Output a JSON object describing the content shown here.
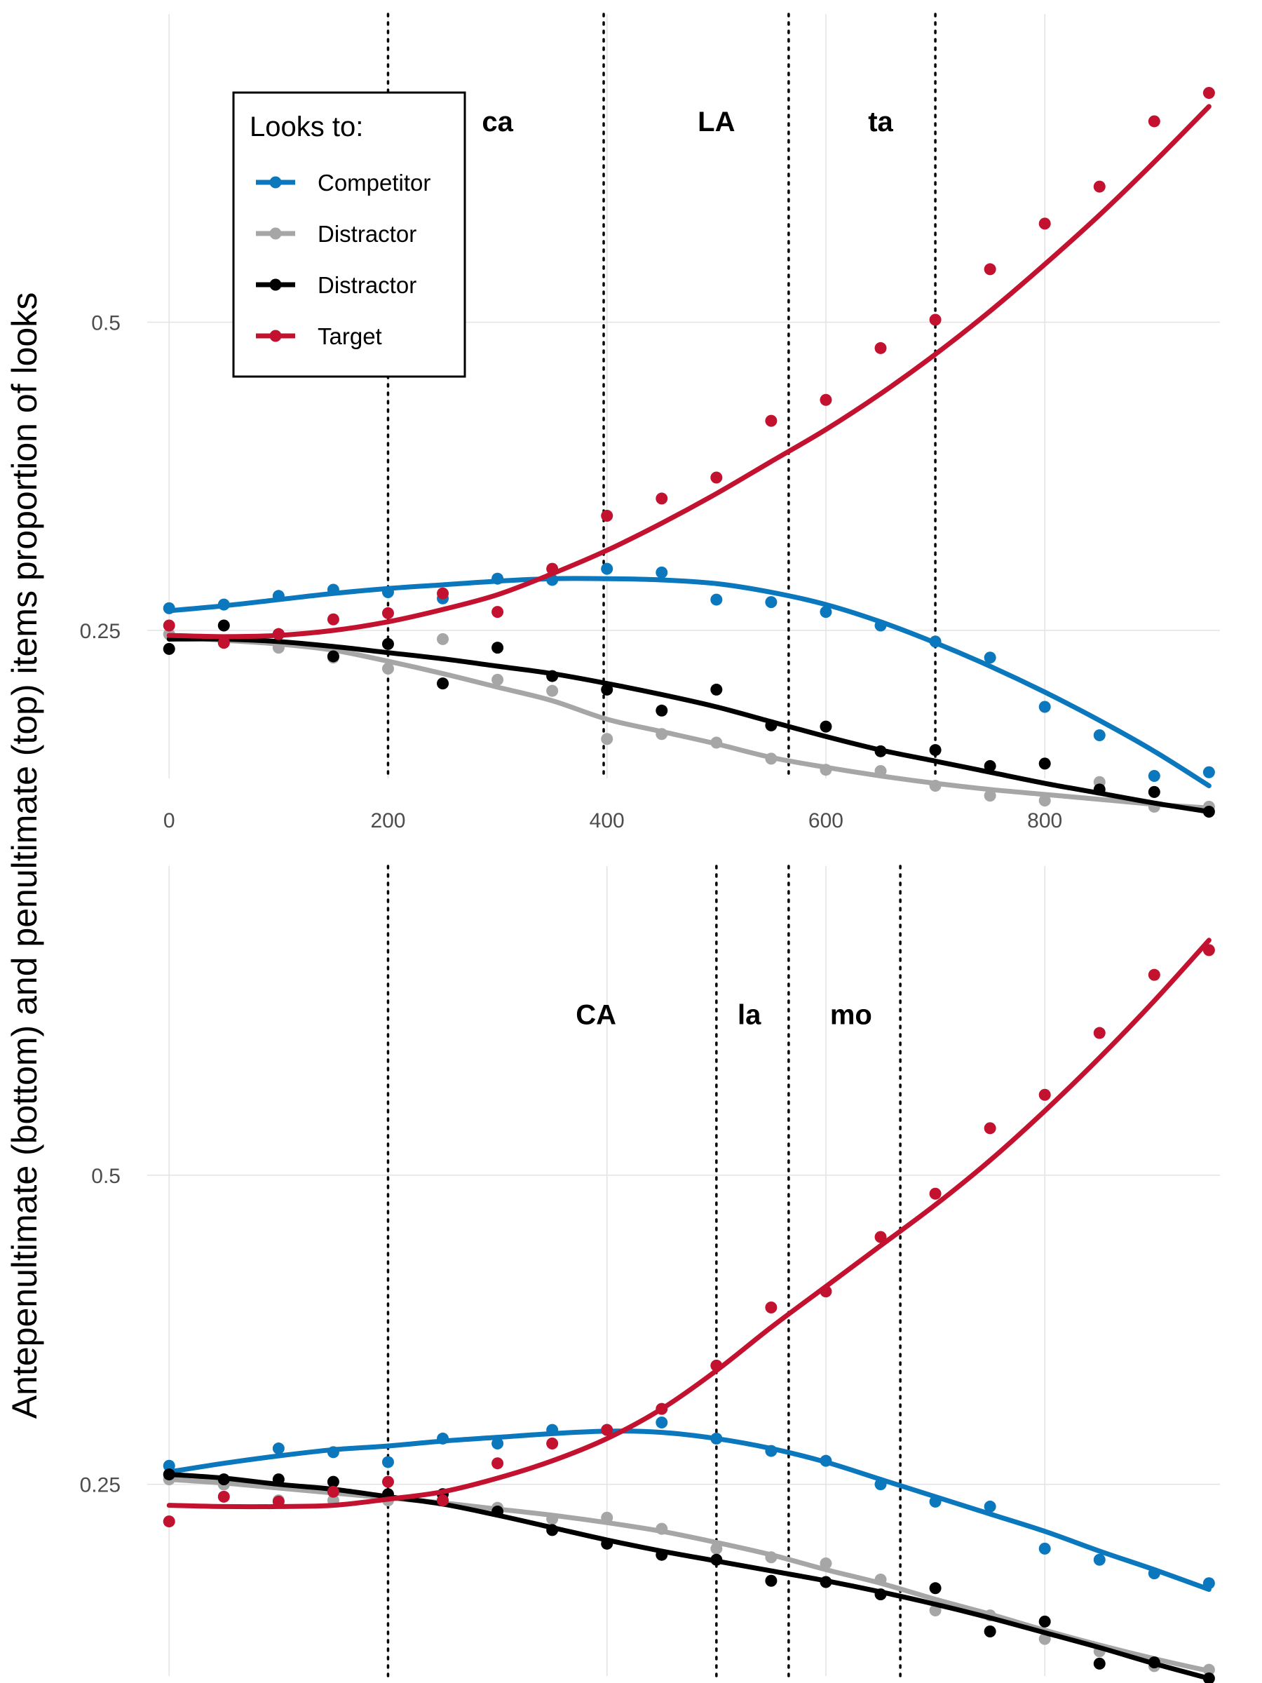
{
  "ylabel": "Antepenultimate (bottom) and penultimate (top) items proportion of looks",
  "colors": {
    "Competitor": "#0b77bd",
    "Distractor1": "#a6a6a6",
    "Distractor2": "#000000",
    "Target": "#c3122f"
  },
  "legend": {
    "title": "Looks to:",
    "items": [
      {
        "label": "Competitor",
        "color": "#0b77bd"
      },
      {
        "label": "Distractor",
        "color": "#a6a6a6"
      },
      {
        "label": "Distractor",
        "color": "#000000"
      },
      {
        "label": "Target",
        "color": "#c3122f"
      }
    ]
  },
  "chart_data": [
    {
      "type": "scatter",
      "panel": "top",
      "x": [
        0,
        50,
        100,
        150,
        200,
        250,
        300,
        350,
        400,
        450,
        500,
        550,
        600,
        650,
        700,
        750,
        800,
        850,
        900,
        950
      ],
      "xlim": [
        -20,
        960
      ],
      "ylim": [
        0.13,
        0.75
      ],
      "xticks": [
        "0",
        "200",
        "400",
        "600",
        "800"
      ],
      "xtick_values": [
        0,
        200,
        400,
        600,
        800
      ],
      "yticks": [
        "0.25",
        "0.5"
      ],
      "ytick_values": [
        0.25,
        0.5
      ],
      "vlines": [
        200,
        397,
        566,
        700
      ],
      "segments": [
        {
          "label": "ca",
          "x": 300,
          "y": 0.663
        },
        {
          "label": "LA",
          "x": 500,
          "y": 0.663
        },
        {
          "label": "ta",
          "x": 650,
          "y": 0.663
        }
      ],
      "series": [
        {
          "name": "Competitor",
          "color": "#0b77bd",
          "points": [
            0.268,
            0.271,
            0.278,
            0.283,
            0.281,
            0.276,
            0.292,
            0.291,
            0.3,
            0.297,
            0.275,
            0.273,
            0.265,
            0.254,
            0.241,
            0.228,
            0.188,
            0.165,
            0.132,
            0.135
          ],
          "fit": [
            0.266,
            0.27,
            0.275,
            0.28,
            0.284,
            0.287,
            0.29,
            0.292,
            0.292,
            0.291,
            0.288,
            0.281,
            0.271,
            0.257,
            0.24,
            0.221,
            0.2,
            0.177,
            0.152,
            0.124
          ]
        },
        {
          "name": "Distractor",
          "color": "#a6a6a6",
          "points": [
            0.247,
            0.24,
            0.236,
            0.228,
            0.219,
            0.243,
            0.21,
            0.201,
            0.162,
            0.166,
            0.159,
            0.146,
            0.137,
            0.136,
            0.124,
            0.116,
            0.112,
            0.127,
            0.107,
            0.107
          ],
          "fit": [
            0.245,
            0.242,
            0.239,
            0.234,
            0.225,
            0.215,
            0.204,
            0.193,
            0.178,
            0.168,
            0.158,
            0.147,
            0.139,
            0.132,
            0.126,
            0.121,
            0.117,
            0.113,
            0.109,
            0.106
          ]
        },
        {
          "name": "Distractor",
          "color": "#000000",
          "points": [
            0.235,
            0.254,
            0.247,
            0.229,
            0.239,
            0.207,
            0.236,
            0.213,
            0.202,
            0.185,
            0.202,
            0.173,
            0.172,
            0.152,
            0.153,
            0.14,
            0.142,
            0.121,
            0.119,
            0.103
          ],
          "fit": [
            0.243,
            0.243,
            0.241,
            0.237,
            0.232,
            0.227,
            0.221,
            0.215,
            0.207,
            0.198,
            0.188,
            0.176,
            0.164,
            0.153,
            0.144,
            0.135,
            0.126,
            0.118,
            0.11,
            0.103
          ]
        },
        {
          "name": "Target",
          "color": "#c3122f",
          "points": [
            0.254,
            0.24,
            0.247,
            0.259,
            0.264,
            0.28,
            0.265,
            0.3,
            0.343,
            0.357,
            0.374,
            0.42,
            0.437,
            0.479,
            0.502,
            0.543,
            0.58,
            0.61,
            0.663,
            0.686
          ],
          "fit": [
            0.246,
            0.245,
            0.246,
            0.25,
            0.257,
            0.267,
            0.279,
            0.296,
            0.315,
            0.337,
            0.361,
            0.387,
            0.413,
            0.442,
            0.474,
            0.509,
            0.547,
            0.587,
            0.63,
            0.675
          ]
        }
      ]
    },
    {
      "type": "scatter",
      "panel": "bottom",
      "x": [
        0,
        50,
        100,
        150,
        200,
        250,
        300,
        350,
        400,
        450,
        500,
        550,
        600,
        650,
        700,
        750,
        800,
        850,
        900,
        950
      ],
      "xlim": [
        -20,
        960
      ],
      "ylim": [
        0.095,
        0.75
      ],
      "xticks": [],
      "xtick_values": [
        0,
        200,
        400,
        600,
        800
      ],
      "yticks": [
        "0.25",
        "0.5"
      ],
      "ytick_values": [
        0.25,
        0.5
      ],
      "vlines": [
        200,
        500,
        566,
        668
      ],
      "segments": [
        {
          "label": "CA",
          "x": 390,
          "y": 0.63
        },
        {
          "label": "la",
          "x": 530,
          "y": 0.63
        },
        {
          "label": "mo",
          "x": 623,
          "y": 0.63
        }
      ],
      "series": [
        {
          "name": "Competitor",
          "color": "#0b77bd",
          "points": [
            0.265,
            0.25,
            0.279,
            0.276,
            0.268,
            0.287,
            0.283,
            0.294,
            0.294,
            0.3,
            0.287,
            0.277,
            0.269,
            0.25,
            0.236,
            0.232,
            0.198,
            0.189,
            0.178,
            0.17
          ],
          "fit": [
            0.26,
            0.267,
            0.273,
            0.278,
            0.281,
            0.285,
            0.288,
            0.291,
            0.293,
            0.292,
            0.287,
            0.279,
            0.268,
            0.254,
            0.24,
            0.226,
            0.212,
            0.196,
            0.181,
            0.165
          ]
        },
        {
          "name": "Distractor",
          "color": "#a6a6a6",
          "points": [
            0.254,
            0.25,
            0.237,
            0.237,
            0.237,
            0.237,
            0.231,
            0.222,
            0.223,
            0.214,
            0.198,
            0.191,
            0.186,
            0.173,
            0.148,
            0.144,
            0.125,
            0.115,
            0.103,
            0.1
          ],
          "fit": [
            0.254,
            0.251,
            0.247,
            0.243,
            0.239,
            0.235,
            0.23,
            0.225,
            0.219,
            0.212,
            0.203,
            0.193,
            0.181,
            0.17,
            0.157,
            0.145,
            0.132,
            0.12,
            0.109,
            0.099
          ]
        },
        {
          "name": "Distractor",
          "color": "#000000",
          "points": [
            0.258,
            0.254,
            0.254,
            0.252,
            0.242,
            0.242,
            0.228,
            0.213,
            0.202,
            0.193,
            0.189,
            0.172,
            0.171,
            0.161,
            0.166,
            0.131,
            0.139,
            0.105,
            0.106,
            0.093
          ],
          "fit": [
            0.258,
            0.255,
            0.25,
            0.246,
            0.24,
            0.234,
            0.225,
            0.215,
            0.205,
            0.196,
            0.188,
            0.18,
            0.172,
            0.163,
            0.153,
            0.142,
            0.13,
            0.118,
            0.105,
            0.093
          ]
        },
        {
          "name": "Target",
          "color": "#c3122f",
          "points": [
            0.22,
            0.24,
            0.236,
            0.244,
            0.252,
            0.237,
            0.267,
            0.283,
            0.294,
            0.311,
            0.346,
            0.393,
            0.406,
            0.45,
            0.485,
            0.538,
            0.565,
            0.615,
            0.662,
            0.682
          ],
          "fit": [
            0.233,
            0.232,
            0.232,
            0.233,
            0.238,
            0.244,
            0.255,
            0.269,
            0.287,
            0.311,
            0.342,
            0.377,
            0.41,
            0.443,
            0.476,
            0.512,
            0.552,
            0.595,
            0.641,
            0.69
          ]
        }
      ]
    }
  ]
}
